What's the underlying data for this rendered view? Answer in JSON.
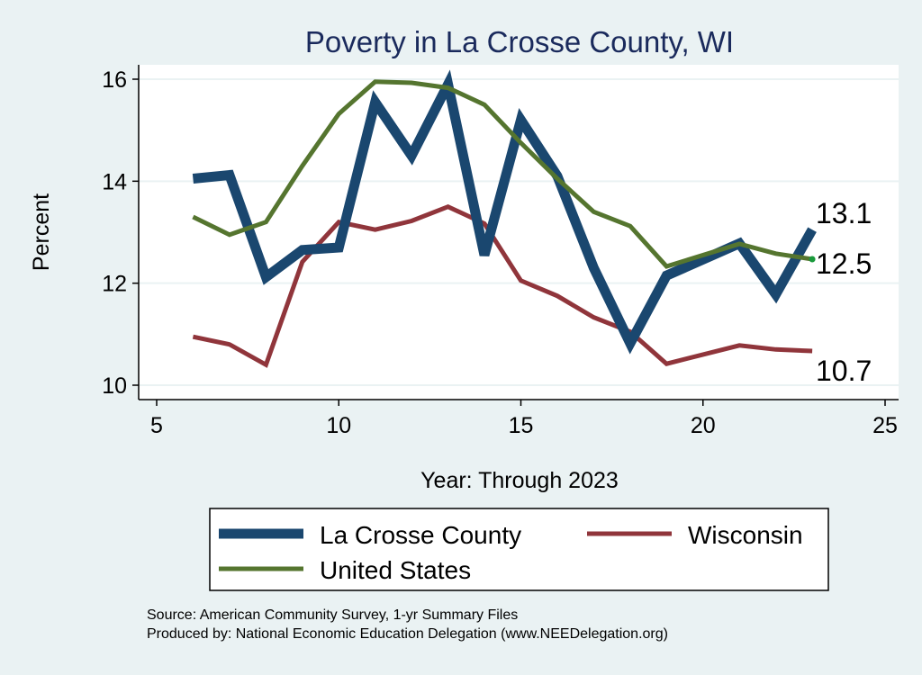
{
  "chart_data": {
    "type": "line",
    "title": "Poverty in La Crosse County, WI",
    "xlabel": "Year: Through 2023",
    "ylabel": "Percent",
    "xlim": [
      5,
      25
    ],
    "ylim": [
      10,
      16
    ],
    "x_ticks": [
      "5",
      "10",
      "15",
      "20",
      "25"
    ],
    "y_ticks": [
      "10",
      "12",
      "14",
      "16"
    ],
    "grid": "horizontal",
    "legend_position": "bottom",
    "series": [
      {
        "name": "La Crosse County",
        "color": "#1a476f",
        "x": [
          6,
          7,
          8,
          9,
          10,
          11,
          12,
          13,
          14,
          15,
          16,
          17,
          18,
          19,
          21,
          22,
          23
        ],
        "y": [
          14.05,
          14.12,
          12.12,
          12.65,
          12.7,
          15.55,
          14.5,
          15.9,
          12.55,
          15.2,
          14.1,
          12.3,
          10.82,
          12.15,
          12.78,
          11.78,
          13.05
        ],
        "end_label": "13.1"
      },
      {
        "name": "Wisconsin",
        "color": "#90353b",
        "x": [
          6,
          7,
          8,
          9,
          10,
          11,
          12,
          13,
          14,
          15,
          16,
          17,
          18,
          19,
          21,
          22,
          23
        ],
        "y": [
          10.95,
          10.8,
          10.4,
          12.42,
          13.2,
          13.05,
          13.22,
          13.5,
          13.17,
          12.05,
          11.75,
          11.33,
          11.05,
          10.42,
          10.78,
          10.7,
          10.67
        ],
        "end_label": "10.7"
      },
      {
        "name": "United States",
        "color": "#55752f",
        "x": [
          6,
          7,
          8,
          9,
          10,
          11,
          12,
          13,
          14,
          15,
          16,
          17,
          18,
          19,
          21,
          22,
          23
        ],
        "y": [
          13.3,
          12.95,
          13.2,
          14.3,
          15.32,
          15.95,
          15.93,
          15.83,
          15.5,
          14.75,
          14.05,
          13.4,
          13.12,
          12.33,
          12.77,
          12.58,
          12.47
        ],
        "end_label": "12.5"
      }
    ],
    "legend_items": [
      {
        "name": "La Crosse County",
        "color": "#1a476f",
        "width": 11
      },
      {
        "name": "Wisconsin",
        "color": "#90353b",
        "width": 5
      },
      {
        "name": "United States",
        "color": "#55752f",
        "width": 5
      }
    ],
    "source_lines": [
      "Source: American Community Survey, 1-yr Summary Files",
      "Produced by: National Economic Education Delegation (www.NEEDelegation.org)"
    ]
  }
}
